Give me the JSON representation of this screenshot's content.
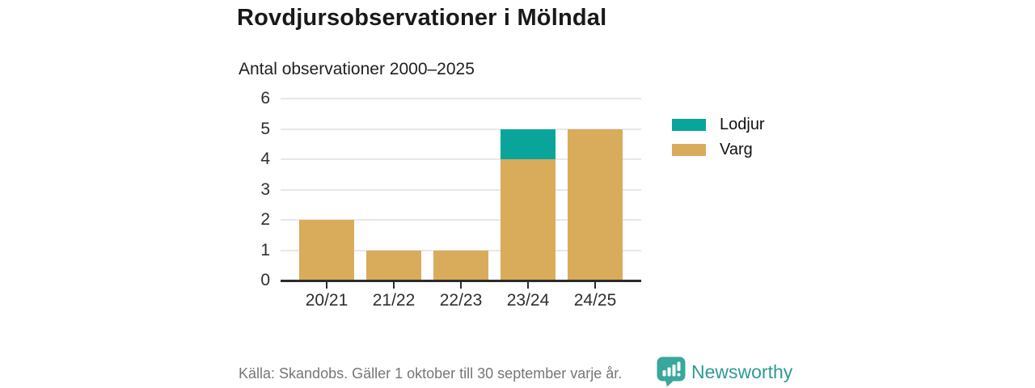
{
  "header": {
    "title": "Rovdjursobservationer i Mölndal",
    "subtitle": "Antal observationer 2000–2025"
  },
  "chart_data": {
    "type": "bar",
    "stacked": true,
    "title": "Rovdjursobservationer i Mölndal",
    "subtitle": "Antal observationer 2000–2025",
    "categories": [
      "20/21",
      "21/22",
      "22/23",
      "23/24",
      "24/25"
    ],
    "series": [
      {
        "name": "Varg",
        "color": "#d9ac5b",
        "values": [
          2,
          1,
          1,
          4,
          5
        ]
      },
      {
        "name": "Lodjur",
        "color": "#0aa59a",
        "values": [
          0,
          0,
          0,
          1,
          0
        ]
      }
    ],
    "totals": [
      2,
      1,
      1,
      5,
      5
    ],
    "legend": [
      "Lodjur",
      "Varg"
    ],
    "legend_position": "right",
    "xlabel": "",
    "ylabel": "",
    "ylim": [
      0,
      6
    ],
    "yticks": [
      0,
      1,
      2,
      3,
      4,
      5,
      6
    ],
    "grid": true
  },
  "footer": {
    "source": "Källa: Skandobs. Gäller 1 oktober till 30 september varje år.",
    "brand": "Newsworthy"
  },
  "colors": {
    "lodjur": "#0aa59a",
    "varg": "#d9ac5b",
    "brand_teal": "#2e9b94",
    "logo_teal": "#3aa79d",
    "axis": "#2b2b2b",
    "grid": "#e7e7e7",
    "text": "#191919",
    "muted": "#767676"
  }
}
